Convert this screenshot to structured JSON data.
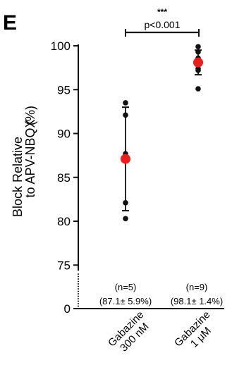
{
  "panel_label": "E",
  "chart_data": {
    "type": "scatter",
    "ylabel_line1": "Block Relative",
    "ylabel_line2": "to APV-NBQX",
    "ylabel_unit": "(%)",
    "ylim": [
      0,
      100
    ],
    "axis_break_between": [
      0,
      75
    ],
    "yticks": [
      0,
      75,
      80,
      85,
      90,
      95,
      100
    ],
    "categories": [
      {
        "label_line1": "Gabazine",
        "label_line2": "300 nM",
        "n_label": "(n=5)",
        "mean_label": "(87.1± 5.9%)",
        "mean": 87.1,
        "sd": 5.9,
        "points": [
          93.5,
          92.1,
          87.7,
          82.1,
          80.3
        ]
      },
      {
        "label_line1": "Gabazine",
        "label_line2": "1 μM",
        "n_label": "(n=9)",
        "mean_label": "(98.1± 1.4%)",
        "mean": 98.1,
        "sd": 1.4,
        "points": [
          99.9,
          99.3,
          98.6,
          98.3,
          98.0,
          97.9,
          97.4,
          97.2,
          95.1
        ]
      }
    ],
    "significance": {
      "stars": "***",
      "p_text": "p<0.001"
    },
    "colors": {
      "mean_marker": "#ee1c1c",
      "points": "#111111",
      "axis": "#111111"
    }
  }
}
